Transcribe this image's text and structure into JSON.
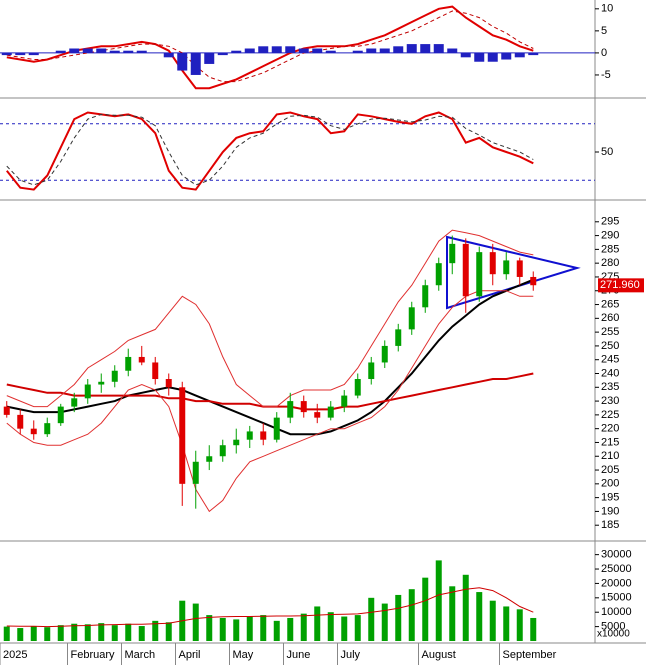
{
  "chart_data": [
    {
      "type": "macd",
      "ylim": [
        -10,
        12
      ],
      "yticks": [
        -5,
        0,
        5,
        10
      ],
      "series": [
        {
          "style": "line",
          "color": "#e00000",
          "values": [
            -1,
            -1.5,
            -2,
            -1.5,
            -0.5,
            0.5,
            1,
            1.5,
            1.5,
            2,
            2.5,
            2,
            0.5,
            -4,
            -8,
            -8,
            -7,
            -6,
            -4.5,
            -3,
            -1.5,
            0,
            1,
            1.5,
            1.5,
            1.5,
            2,
            3,
            4,
            5.5,
            7,
            8.5,
            10,
            10.5,
            8,
            6,
            4,
            3,
            1.5,
            0.5
          ]
        },
        {
          "style": "dashed",
          "color": "#c00000",
          "values": [
            -0.5,
            -1,
            -1.5,
            -1.5,
            -1,
            -0.5,
            0,
            0.5,
            1,
            1.5,
            2,
            2,
            1.5,
            0,
            -3,
            -5.5,
            -6.5,
            -6.5,
            -5.5,
            -4.5,
            -3,
            -1.5,
            0,
            0.5,
            1,
            1.5,
            1.5,
            2,
            3,
            4,
            5,
            6.5,
            8,
            9.5,
            9,
            8,
            6,
            4.5,
            2.5,
            1
          ]
        },
        {
          "style": "histogram",
          "color": "#2020c0",
          "values": [
            -0.5,
            -0.5,
            -0.5,
            0,
            0.5,
            1,
            1,
            1,
            0.5,
            0.5,
            0.5,
            0,
            -1,
            -4,
            -5,
            -2.5,
            -0.5,
            0.5,
            1,
            1.5,
            1.5,
            1.5,
            1,
            1,
            0.5,
            0,
            0.5,
            1,
            1,
            1.5,
            2,
            2,
            2,
            1,
            -1,
            -2,
            -2,
            -1.5,
            -1,
            -0.5
          ]
        }
      ]
    },
    {
      "type": "line",
      "ylim": [
        0,
        100
      ],
      "yticks": [
        50
      ],
      "levels": [
        80,
        20
      ],
      "level_color": "#2020c0",
      "series": [
        {
          "style": "line",
          "color": "#e00000",
          "values": [
            30,
            12,
            10,
            25,
            55,
            85,
            92,
            90,
            88,
            90,
            85,
            70,
            30,
            12,
            10,
            30,
            50,
            65,
            70,
            72,
            90,
            92,
            88,
            85,
            70,
            72,
            90,
            88,
            85,
            82,
            80,
            88,
            92,
            85,
            60,
            65,
            55,
            50,
            45,
            38
          ]
        },
        {
          "style": "dashed",
          "color": "#333333",
          "values": [
            35,
            20,
            15,
            20,
            40,
            65,
            85,
            90,
            89,
            89,
            87,
            78,
            50,
            25,
            15,
            20,
            35,
            55,
            65,
            70,
            80,
            88,
            89,
            87,
            78,
            74,
            80,
            85,
            86,
            84,
            82,
            84,
            88,
            87,
            75,
            68,
            60,
            55,
            50,
            42
          ]
        }
      ]
    },
    {
      "type": "candlestick",
      "ylim": [
        180,
        300
      ],
      "yticks": [
        185,
        190,
        195,
        200,
        205,
        210,
        215,
        220,
        225,
        230,
        235,
        240,
        245,
        250,
        255,
        260,
        265,
        270,
        275,
        280,
        285,
        290,
        295
      ],
      "up_color": "#00a000",
      "down_color": "#e00000",
      "open": [
        228,
        225,
        220,
        218,
        222,
        228,
        231,
        236,
        237,
        241,
        246,
        244,
        238,
        235,
        200,
        208,
        210,
        214,
        216,
        219,
        216,
        224,
        230,
        226,
        224,
        228,
        232,
        238,
        244,
        250,
        256,
        264,
        272,
        280,
        287,
        268,
        284,
        276,
        281,
        275
      ],
      "high": [
        230,
        227,
        223,
        224,
        229,
        233,
        238,
        240,
        243,
        249,
        250,
        246,
        240,
        237,
        212,
        214,
        216,
        220,
        221,
        222,
        226,
        233,
        232,
        229,
        230,
        234,
        240,
        246,
        252,
        258,
        266,
        274,
        282,
        290,
        289,
        286,
        287,
        284,
        282,
        277
      ],
      "low": [
        224,
        218,
        216,
        217,
        221,
        226,
        229,
        233,
        235,
        239,
        243,
        236,
        232,
        192,
        191,
        205,
        208,
        211,
        213,
        214,
        215,
        222,
        224,
        222,
        223,
        226,
        231,
        236,
        242,
        248,
        254,
        262,
        270,
        276,
        262,
        266,
        272,
        274,
        272,
        270
      ],
      "close": [
        225,
        220,
        218,
        222,
        228,
        231,
        236,
        237,
        241,
        246,
        244,
        238,
        235,
        200,
        208,
        210,
        214,
        216,
        219,
        216,
        224,
        230,
        226,
        224,
        228,
        232,
        238,
        244,
        250,
        256,
        264,
        272,
        280,
        287,
        268,
        284,
        276,
        281,
        275,
        272
      ],
      "series": [
        {
          "color": "#000000",
          "values": [
            228,
            227,
            226,
            226,
            226,
            227,
            228,
            229,
            230,
            232,
            233,
            234,
            235,
            234,
            232,
            230,
            228,
            226,
            224,
            222,
            220,
            218,
            218,
            218,
            219,
            221,
            223,
            226,
            230,
            235,
            240,
            246,
            252,
            257,
            261,
            265,
            268,
            270,
            272,
            274
          ]
        },
        {
          "color": "#d00000",
          "values": [
            236,
            235,
            234,
            233,
            233,
            232,
            232,
            232,
            232,
            232,
            232,
            232,
            231,
            231,
            230,
            230,
            229,
            229,
            229,
            228,
            228,
            228,
            227,
            227,
            227,
            228,
            228,
            229,
            230,
            231,
            232,
            233,
            234,
            235,
            236,
            237,
            238,
            238,
            239,
            240
          ]
        },
        {
          "color": "#e03030",
          "values": [
            232,
            230,
            228,
            228,
            232,
            236,
            242,
            245,
            248,
            252,
            254,
            256,
            262,
            268,
            265,
            258,
            246,
            236,
            232,
            228,
            228,
            232,
            234,
            234,
            234,
            236,
            242,
            250,
            258,
            266,
            272,
            280,
            288,
            292,
            291,
            290,
            288,
            286,
            284,
            283
          ]
        },
        {
          "color": "#e03030",
          "values": [
            222,
            218,
            215,
            214,
            214,
            216,
            218,
            222,
            228,
            234,
            236,
            234,
            228,
            214,
            198,
            190,
            194,
            202,
            208,
            210,
            212,
            214,
            216,
            218,
            220,
            220,
            222,
            224,
            228,
            234,
            242,
            250,
            258,
            264,
            268,
            270,
            270,
            270,
            268,
            268
          ]
        }
      ],
      "last_price": 271.96,
      "last_price_label": "271.960",
      "triangle_color": "#1010d0"
    },
    {
      "type": "bar",
      "ylim": [
        0,
        33000
      ],
      "yticks": [
        5000,
        10000,
        15000,
        20000,
        25000,
        30000
      ],
      "unit_label": "x10000",
      "color": "#00a000",
      "categories": [
        "2025",
        null,
        null,
        null,
        null,
        "February",
        null,
        null,
        null,
        "March",
        null,
        null,
        null,
        "April",
        null,
        null,
        null,
        "May",
        null,
        null,
        null,
        "June",
        null,
        null,
        null,
        "July",
        null,
        null,
        null,
        null,
        null,
        "August",
        null,
        null,
        null,
        null,
        null,
        "September",
        null,
        null
      ],
      "values": [
        5000,
        4500,
        5200,
        4800,
        5500,
        6000,
        5800,
        6200,
        5500,
        6000,
        5200,
        7000,
        6500,
        14000,
        13000,
        9000,
        8000,
        7500,
        8500,
        9000,
        7000,
        8000,
        9500,
        12000,
        10000,
        8500,
        9000,
        15000,
        13000,
        16000,
        18000,
        22000,
        28000,
        19000,
        23000,
        17000,
        14000,
        12000,
        11000,
        8000
      ],
      "series": [
        {
          "color": "#d00000",
          "values": [
            5200,
            5100,
            5100,
            5000,
            5100,
            5300,
            5400,
            5600,
            5700,
            5800,
            5800,
            6000,
            6200,
            7000,
            7800,
            8200,
            8400,
            8500,
            8500,
            8600,
            8700,
            8700,
            8800,
            9000,
            9200,
            9300,
            9400,
            10000,
            10600,
            11400,
            12500,
            14000,
            16000,
            17000,
            18000,
            18500,
            17500,
            15000,
            12000,
            10000
          ]
        }
      ]
    }
  ]
}
